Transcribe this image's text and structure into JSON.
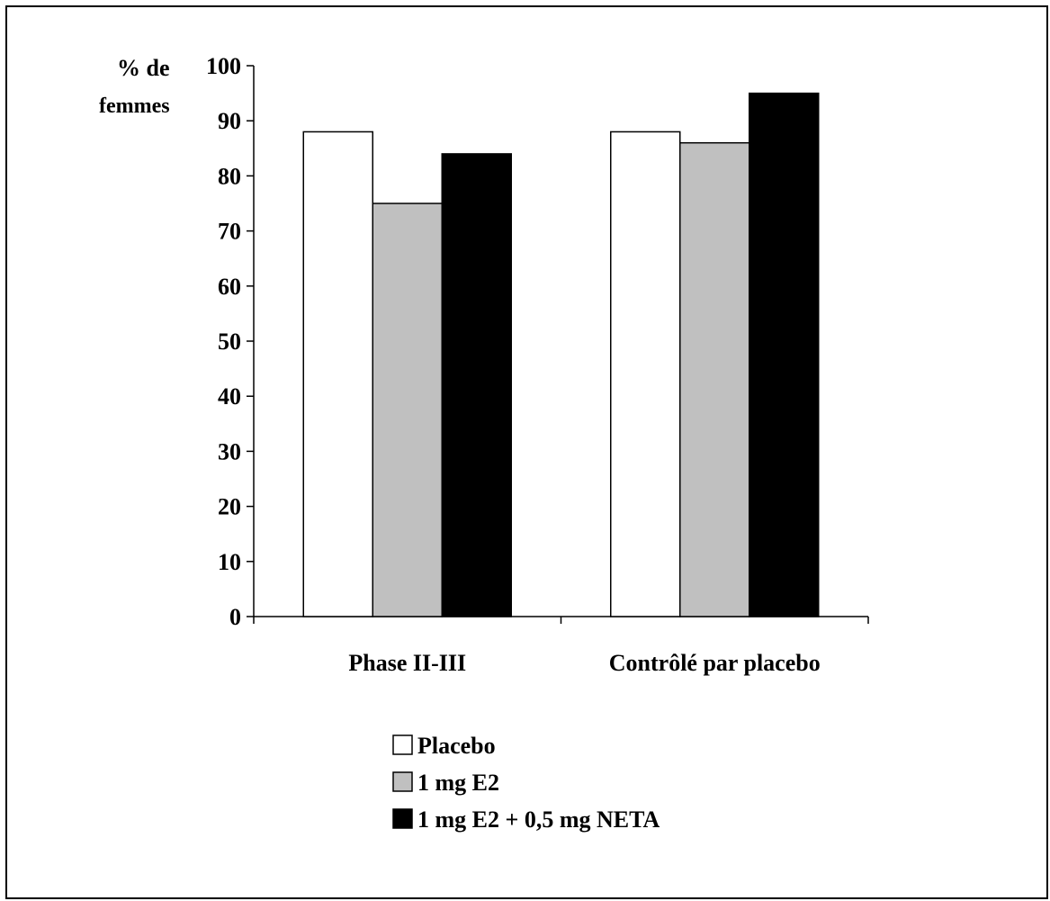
{
  "chart_data": {
    "type": "bar",
    "title": "",
    "ylabel_line1": "% de",
    "ylabel_line2": "femmes",
    "xlabel": "",
    "ylim": [
      0,
      100
    ],
    "yticks": [
      "0",
      "10",
      "20",
      "30",
      "40",
      "50",
      "60",
      "70",
      "80",
      "90",
      "100"
    ],
    "grid": false,
    "legend_position": "bottom-center",
    "categories": [
      "Phase II-III",
      "Contrôlé par placebo"
    ],
    "series": [
      {
        "name": "Placebo",
        "color": "#ffffff",
        "values": [
          88,
          88
        ]
      },
      {
        "name": "1 mg E2",
        "color": "#c0c0c0",
        "values": [
          75,
          86
        ]
      },
      {
        "name": "1 mg E2 + 0,5 mg NETA",
        "color": "#000000",
        "values": [
          84,
          95
        ]
      }
    ]
  }
}
